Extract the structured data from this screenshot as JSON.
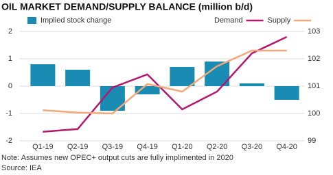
{
  "chart_data": {
    "type": "bar-line",
    "title": "OIL MARKET DEMAND/SUPPLY BALANCE (million b/d)",
    "note": "Note: Assumes new OPEC+ output cuts are fully implimented in 2020",
    "source": "Source: IEA",
    "categories": [
      "Q1-19",
      "Q2-19",
      "Q3-19",
      "Q4-19",
      "Q1-20",
      "Q2-20",
      "Q3-20",
      "Q4-20"
    ],
    "series": [
      {
        "name": "Implied stock change",
        "type": "bar",
        "axis": "y",
        "color": "#1a8bb3",
        "values": [
          0.8,
          0.6,
          -0.9,
          -0.3,
          0.7,
          0.9,
          0.1,
          -0.5
        ]
      },
      {
        "name": "Demand",
        "type": "line",
        "axis": "y2",
        "color": "#b5166e",
        "values": [
          99.33,
          99.43,
          100.95,
          101.43,
          100.15,
          100.8,
          102.2,
          102.8
        ]
      },
      {
        "name": "Supply",
        "type": "line",
        "axis": "y2",
        "color": "#f4a77a",
        "values": [
          100.12,
          100.03,
          100.0,
          101.08,
          100.8,
          101.73,
          102.3,
          102.3
        ]
      }
    ],
    "ylim": [
      -2,
      2
    ],
    "yticks": [
      2,
      1,
      0,
      -1,
      -2
    ],
    "y2lim": [
      99,
      103
    ],
    "y2ticks": [
      103,
      102,
      101,
      100,
      99
    ],
    "grid": true
  }
}
